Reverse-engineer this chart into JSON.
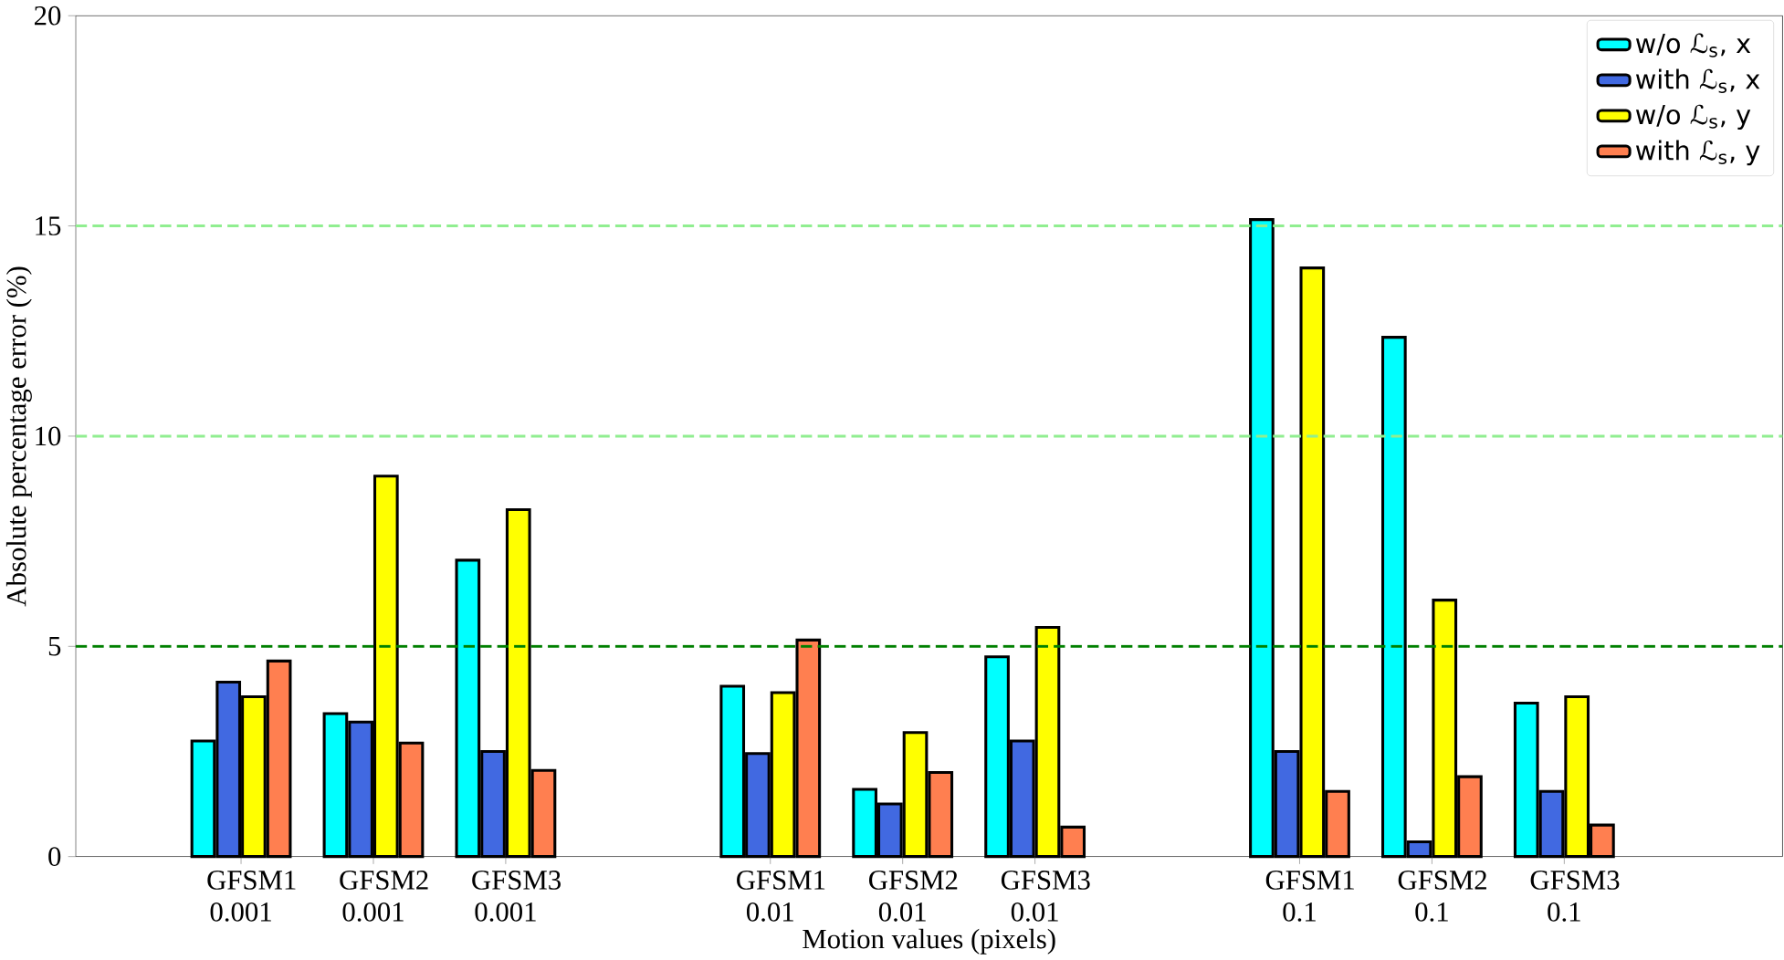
{
  "chart_data": {
    "type": "bar",
    "xlabel": "Motion values (pixels)",
    "ylabel": "Absolute percentage error (%)",
    "categories": [
      "GFSM1 0.001",
      "GFSM2 0.001",
      "GFSM3 0.001",
      null,
      "GFSM1 0.01",
      "GFSM2 0.01",
      "GFSM3 0.01",
      null,
      "GFSM1 0.1",
      "GFSM2 0.1",
      "GFSM3 0.1"
    ],
    "series": [
      {
        "name": "w/o ℒ$_{s}$, x",
        "color": "#00ffff",
        "values": [
          2.75,
          3.4,
          7.05,
          null,
          4.05,
          1.6,
          4.75,
          null,
          15.15,
          12.35,
          3.65
        ]
      },
      {
        "name": "with ℒ$_{s}$, x",
        "color": "#4169e1",
        "values": [
          4.15,
          3.2,
          2.5,
          null,
          2.45,
          1.25,
          2.75,
          null,
          2.5,
          0.35,
          1.55
        ]
      },
      {
        "name": "w/o ℒ$_{s}$, y",
        "color": "#ffff00",
        "values": [
          3.8,
          9.05,
          8.25,
          null,
          3.9,
          2.95,
          5.45,
          null,
          14.0,
          6.1,
          3.8
        ]
      },
      {
        "name": "with ℒ$_{s}$, y",
        "color": "#ff7f50",
        "values": [
          4.65,
          2.7,
          2.05,
          null,
          5.15,
          2.0,
          0.7,
          null,
          1.55,
          1.9,
          0.75
        ]
      }
    ],
    "ylim": [
      0,
      20
    ],
    "yticks": [
      0,
      5,
      10,
      15,
      20
    ],
    "ref_lines": [
      {
        "axis": "y",
        "value": 5,
        "color": "#008000",
        "line_style": "dashed"
      },
      {
        "axis": "y",
        "value": 10,
        "color": "#90ee90",
        "line_style": "dashed"
      },
      {
        "axis": "y",
        "value": 15,
        "color": "#90ee90",
        "line_style": "dashed"
      }
    ],
    "legend": "top right"
  }
}
